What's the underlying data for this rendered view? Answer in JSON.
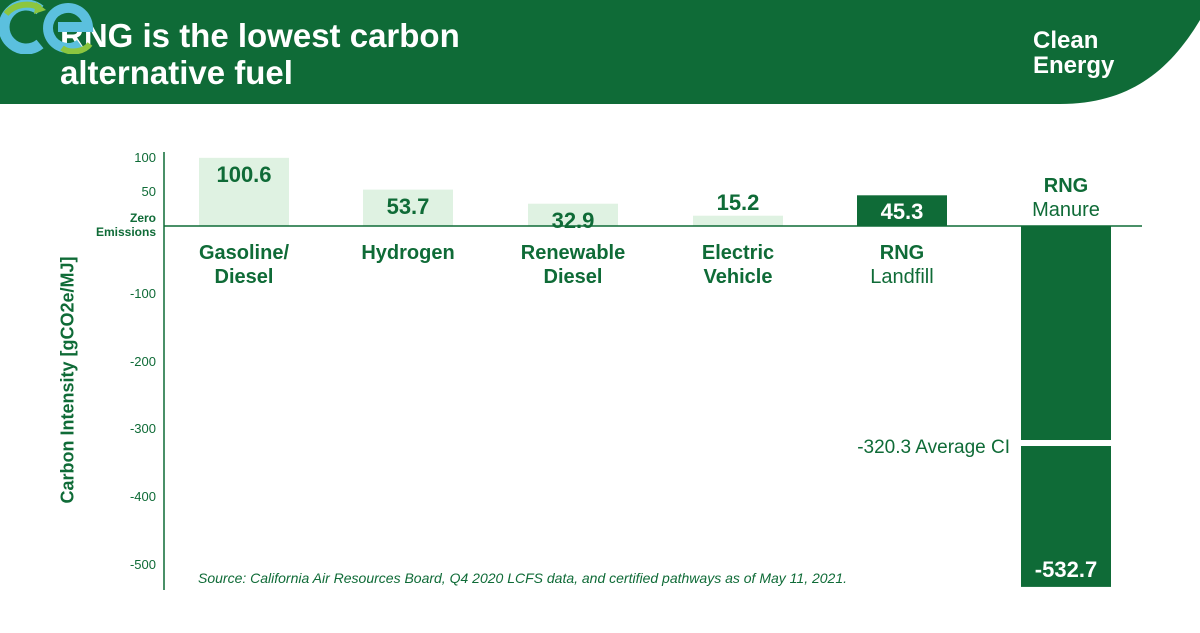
{
  "header": {
    "title_line1": "RNG is the lowest carbon",
    "title_line2": "alternative fuel",
    "logo_line1": "Clean",
    "logo_line2": "Energy",
    "logo_icon": "ce-logo-icon",
    "bg_color": "#0f6b37"
  },
  "colors": {
    "dark_green": "#0f6b37",
    "light_green": "#dff2e2",
    "white": "#ffffff"
  },
  "chart_data": {
    "type": "bar",
    "ylabel": "Carbon Intensity [gCO2e/MJ]",
    "ylim": [
      -532.7,
      100.6
    ],
    "yticks": [
      {
        "value": 100,
        "label": "100"
      },
      {
        "value": 50,
        "label": "50"
      },
      {
        "value": 0,
        "label_line1": "Zero",
        "label_line2": "Emissions"
      },
      {
        "value": -100,
        "label": "-100"
      },
      {
        "value": -200,
        "label": "-200"
      },
      {
        "value": -300,
        "label": "-300"
      },
      {
        "value": -400,
        "label": "-400"
      },
      {
        "value": -500,
        "label": "-500"
      }
    ],
    "categories": [
      {
        "line1": "Gasoline/",
        "line2": "Diesel",
        "bold_first": true,
        "bold_second": true,
        "value": 100.6,
        "label": "100.6",
        "style": "light"
      },
      {
        "line1": "Hydrogen",
        "line2": "",
        "bold_first": true,
        "bold_second": true,
        "value": 53.7,
        "label": "53.7",
        "style": "light"
      },
      {
        "line1": "Renewable",
        "line2": "Diesel",
        "bold_first": true,
        "bold_second": true,
        "value": 32.9,
        "label": "32.9",
        "style": "light"
      },
      {
        "line1": "Electric",
        "line2": "Vehicle",
        "bold_first": true,
        "bold_second": true,
        "value": 15.2,
        "label": "15.2",
        "style": "light"
      },
      {
        "line1": "RNG",
        "line2": "Landfill",
        "bold_first": true,
        "bold_second": false,
        "value": 45.3,
        "label": "45.3",
        "style": "dark"
      },
      {
        "line1": "RNG",
        "line2": "Manure",
        "bold_first": true,
        "bold_second": false,
        "value": -532.7,
        "label": "-532.7",
        "style": "dark"
      }
    ],
    "average": {
      "value": -320.3,
      "label": "-320.3 Average CI"
    },
    "source": "Source: California Air Resources Board, Q4 2020 LCFS data, and certified pathways as of May 11, 2021."
  }
}
